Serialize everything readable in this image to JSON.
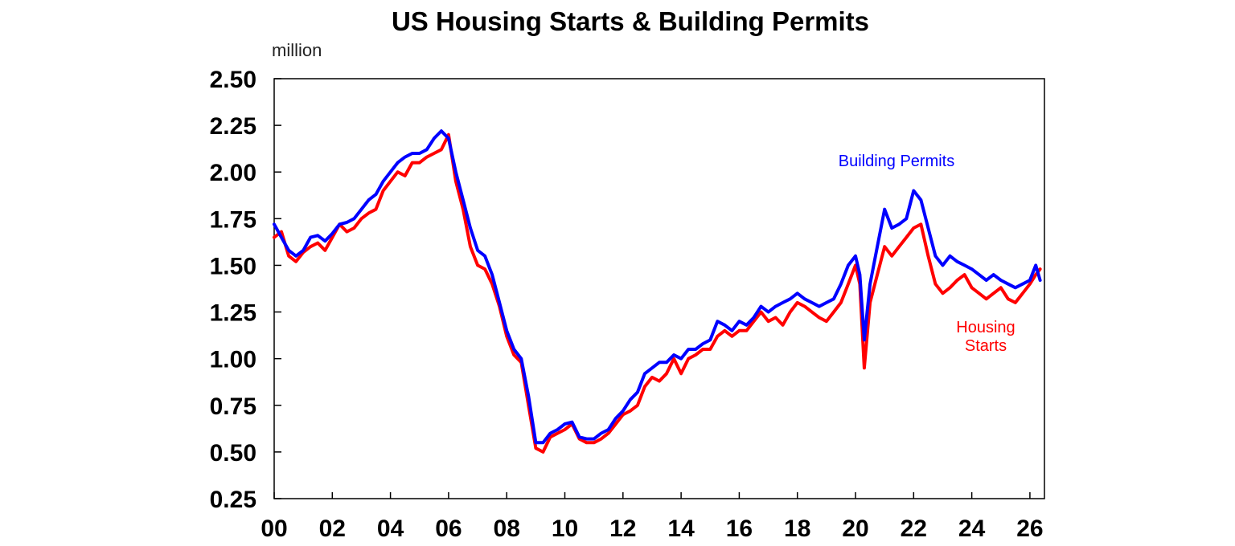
{
  "chart_data": {
    "type": "line",
    "title": "US Housing Starts & Building Permits",
    "ylabel": "million",
    "xlabel": "",
    "ylim": [
      0.25,
      2.5
    ],
    "xlim": [
      2000,
      2026.5
    ],
    "y_ticks": [
      "2.50",
      "2.25",
      "2.00",
      "1.75",
      "1.50",
      "1.25",
      "1.00",
      "0.75",
      "0.50",
      "0.25"
    ],
    "x_ticks": [
      "00",
      "02",
      "04",
      "06",
      "08",
      "10",
      "12",
      "14",
      "16",
      "18",
      "20",
      "22",
      "24",
      "26"
    ],
    "grid": false,
    "series": [
      {
        "name": "Housing Starts",
        "color": "#ff0000",
        "label_lines": [
          "Housing",
          "Starts"
        ],
        "points": [
          [
            2000.0,
            1.65
          ],
          [
            2000.25,
            1.68
          ],
          [
            2000.5,
            1.55
          ],
          [
            2000.75,
            1.52
          ],
          [
            2001.0,
            1.57
          ],
          [
            2001.25,
            1.6
          ],
          [
            2001.5,
            1.62
          ],
          [
            2001.75,
            1.58
          ],
          [
            2002.0,
            1.65
          ],
          [
            2002.25,
            1.72
          ],
          [
            2002.5,
            1.68
          ],
          [
            2002.75,
            1.7
          ],
          [
            2003.0,
            1.75
          ],
          [
            2003.25,
            1.78
          ],
          [
            2003.5,
            1.8
          ],
          [
            2003.75,
            1.9
          ],
          [
            2004.0,
            1.95
          ],
          [
            2004.25,
            2.0
          ],
          [
            2004.5,
            1.98
          ],
          [
            2004.75,
            2.05
          ],
          [
            2005.0,
            2.05
          ],
          [
            2005.25,
            2.08
          ],
          [
            2005.5,
            2.1
          ],
          [
            2005.75,
            2.12
          ],
          [
            2006.0,
            2.2
          ],
          [
            2006.25,
            1.95
          ],
          [
            2006.5,
            1.8
          ],
          [
            2006.75,
            1.6
          ],
          [
            2007.0,
            1.5
          ],
          [
            2007.25,
            1.48
          ],
          [
            2007.5,
            1.4
          ],
          [
            2007.75,
            1.28
          ],
          [
            2008.0,
            1.12
          ],
          [
            2008.25,
            1.02
          ],
          [
            2008.5,
            0.98
          ],
          [
            2008.75,
            0.75
          ],
          [
            2009.0,
            0.52
          ],
          [
            2009.25,
            0.5
          ],
          [
            2009.5,
            0.58
          ],
          [
            2009.75,
            0.6
          ],
          [
            2010.0,
            0.62
          ],
          [
            2010.25,
            0.65
          ],
          [
            2010.5,
            0.57
          ],
          [
            2010.75,
            0.55
          ],
          [
            2011.0,
            0.55
          ],
          [
            2011.25,
            0.57
          ],
          [
            2011.5,
            0.6
          ],
          [
            2011.75,
            0.65
          ],
          [
            2012.0,
            0.7
          ],
          [
            2012.25,
            0.72
          ],
          [
            2012.5,
            0.75
          ],
          [
            2012.75,
            0.85
          ],
          [
            2013.0,
            0.9
          ],
          [
            2013.25,
            0.88
          ],
          [
            2013.5,
            0.92
          ],
          [
            2013.75,
            1.0
          ],
          [
            2014.0,
            0.92
          ],
          [
            2014.25,
            1.0
          ],
          [
            2014.5,
            1.02
          ],
          [
            2014.75,
            1.05
          ],
          [
            2015.0,
            1.05
          ],
          [
            2015.25,
            1.12
          ],
          [
            2015.5,
            1.15
          ],
          [
            2015.75,
            1.12
          ],
          [
            2016.0,
            1.15
          ],
          [
            2016.25,
            1.15
          ],
          [
            2016.5,
            1.2
          ],
          [
            2016.75,
            1.25
          ],
          [
            2017.0,
            1.2
          ],
          [
            2017.25,
            1.22
          ],
          [
            2017.5,
            1.18
          ],
          [
            2017.75,
            1.25
          ],
          [
            2018.0,
            1.3
          ],
          [
            2018.25,
            1.28
          ],
          [
            2018.5,
            1.25
          ],
          [
            2018.75,
            1.22
          ],
          [
            2019.0,
            1.2
          ],
          [
            2019.25,
            1.25
          ],
          [
            2019.5,
            1.3
          ],
          [
            2019.75,
            1.4
          ],
          [
            2020.0,
            1.5
          ],
          [
            2020.15,
            1.4
          ],
          [
            2020.3,
            0.95
          ],
          [
            2020.5,
            1.3
          ],
          [
            2020.75,
            1.45
          ],
          [
            2021.0,
            1.6
          ],
          [
            2021.25,
            1.55
          ],
          [
            2021.5,
            1.6
          ],
          [
            2021.75,
            1.65
          ],
          [
            2022.0,
            1.7
          ],
          [
            2022.25,
            1.72
          ],
          [
            2022.5,
            1.55
          ],
          [
            2022.75,
            1.4
          ],
          [
            2023.0,
            1.35
          ],
          [
            2023.25,
            1.38
          ],
          [
            2023.5,
            1.42
          ],
          [
            2023.75,
            1.45
          ],
          [
            2024.0,
            1.38
          ],
          [
            2024.25,
            1.35
          ],
          [
            2024.5,
            1.32
          ],
          [
            2024.75,
            1.35
          ],
          [
            2025.0,
            1.38
          ],
          [
            2025.25,
            1.32
          ],
          [
            2025.5,
            1.3
          ],
          [
            2025.75,
            1.35
          ],
          [
            2026.0,
            1.4
          ],
          [
            2026.2,
            1.45
          ],
          [
            2026.35,
            1.48
          ]
        ]
      },
      {
        "name": "Building Permits",
        "color": "#0000ff",
        "label_lines": [
          "Building Permits"
        ],
        "points": [
          [
            2000.0,
            1.72
          ],
          [
            2000.25,
            1.65
          ],
          [
            2000.5,
            1.58
          ],
          [
            2000.75,
            1.55
          ],
          [
            2001.0,
            1.58
          ],
          [
            2001.25,
            1.65
          ],
          [
            2001.5,
            1.66
          ],
          [
            2001.75,
            1.63
          ],
          [
            2002.0,
            1.67
          ],
          [
            2002.25,
            1.72
          ],
          [
            2002.5,
            1.73
          ],
          [
            2002.75,
            1.75
          ],
          [
            2003.0,
            1.8
          ],
          [
            2003.25,
            1.85
          ],
          [
            2003.5,
            1.88
          ],
          [
            2003.75,
            1.95
          ],
          [
            2004.0,
            2.0
          ],
          [
            2004.25,
            2.05
          ],
          [
            2004.5,
            2.08
          ],
          [
            2004.75,
            2.1
          ],
          [
            2005.0,
            2.1
          ],
          [
            2005.25,
            2.12
          ],
          [
            2005.5,
            2.18
          ],
          [
            2005.75,
            2.22
          ],
          [
            2006.0,
            2.18
          ],
          [
            2006.25,
            2.0
          ],
          [
            2006.5,
            1.85
          ],
          [
            2006.75,
            1.7
          ],
          [
            2007.0,
            1.58
          ],
          [
            2007.25,
            1.55
          ],
          [
            2007.5,
            1.45
          ],
          [
            2007.75,
            1.3
          ],
          [
            2008.0,
            1.15
          ],
          [
            2008.25,
            1.05
          ],
          [
            2008.5,
            1.0
          ],
          [
            2008.75,
            0.8
          ],
          [
            2009.0,
            0.55
          ],
          [
            2009.25,
            0.55
          ],
          [
            2009.5,
            0.6
          ],
          [
            2009.75,
            0.62
          ],
          [
            2010.0,
            0.65
          ],
          [
            2010.25,
            0.66
          ],
          [
            2010.5,
            0.58
          ],
          [
            2010.75,
            0.57
          ],
          [
            2011.0,
            0.57
          ],
          [
            2011.25,
            0.6
          ],
          [
            2011.5,
            0.62
          ],
          [
            2011.75,
            0.68
          ],
          [
            2012.0,
            0.72
          ],
          [
            2012.25,
            0.78
          ],
          [
            2012.5,
            0.82
          ],
          [
            2012.75,
            0.92
          ],
          [
            2013.0,
            0.95
          ],
          [
            2013.25,
            0.98
          ],
          [
            2013.5,
            0.98
          ],
          [
            2013.75,
            1.02
          ],
          [
            2014.0,
            1.0
          ],
          [
            2014.25,
            1.05
          ],
          [
            2014.5,
            1.05
          ],
          [
            2014.75,
            1.08
          ],
          [
            2015.0,
            1.1
          ],
          [
            2015.25,
            1.2
          ],
          [
            2015.5,
            1.18
          ],
          [
            2015.75,
            1.15
          ],
          [
            2016.0,
            1.2
          ],
          [
            2016.25,
            1.18
          ],
          [
            2016.5,
            1.22
          ],
          [
            2016.75,
            1.28
          ],
          [
            2017.0,
            1.25
          ],
          [
            2017.25,
            1.28
          ],
          [
            2017.5,
            1.3
          ],
          [
            2017.75,
            1.32
          ],
          [
            2018.0,
            1.35
          ],
          [
            2018.25,
            1.32
          ],
          [
            2018.5,
            1.3
          ],
          [
            2018.75,
            1.28
          ],
          [
            2019.0,
            1.3
          ],
          [
            2019.25,
            1.32
          ],
          [
            2019.5,
            1.4
          ],
          [
            2019.75,
            1.5
          ],
          [
            2020.0,
            1.55
          ],
          [
            2020.15,
            1.45
          ],
          [
            2020.3,
            1.1
          ],
          [
            2020.5,
            1.4
          ],
          [
            2020.75,
            1.6
          ],
          [
            2021.0,
            1.8
          ],
          [
            2021.25,
            1.7
          ],
          [
            2021.5,
            1.72
          ],
          [
            2021.75,
            1.75
          ],
          [
            2022.0,
            1.9
          ],
          [
            2022.25,
            1.85
          ],
          [
            2022.5,
            1.7
          ],
          [
            2022.75,
            1.55
          ],
          [
            2023.0,
            1.5
          ],
          [
            2023.25,
            1.55
          ],
          [
            2023.5,
            1.52
          ],
          [
            2023.75,
            1.5
          ],
          [
            2024.0,
            1.48
          ],
          [
            2024.25,
            1.45
          ],
          [
            2024.5,
            1.42
          ],
          [
            2024.75,
            1.45
          ],
          [
            2025.0,
            1.42
          ],
          [
            2025.25,
            1.4
          ],
          [
            2025.5,
            1.38
          ],
          [
            2025.75,
            1.4
          ],
          [
            2026.0,
            1.42
          ],
          [
            2026.2,
            1.5
          ],
          [
            2026.35,
            1.42
          ]
        ]
      }
    ]
  }
}
